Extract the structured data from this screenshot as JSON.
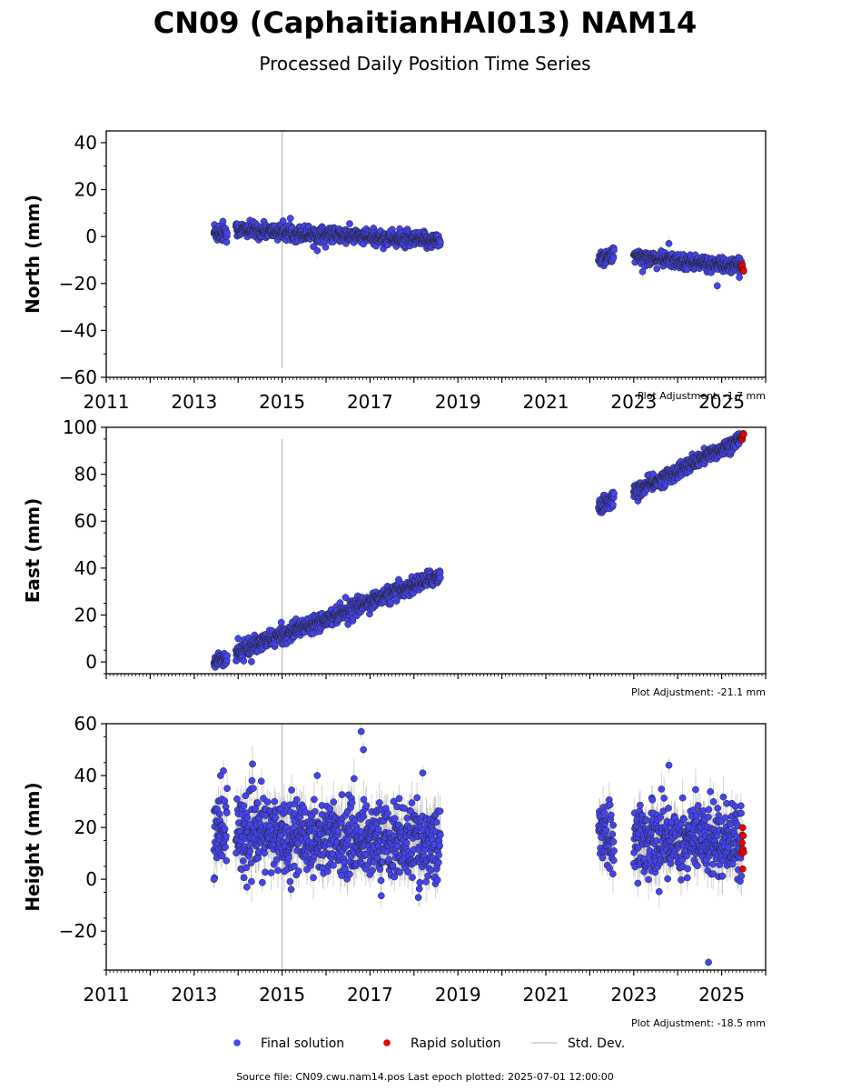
{
  "figure": {
    "title": "CN09 (CaphaitianHAI013) NAM14",
    "subtitle": "Processed Daily Position Time Series",
    "source_note": "Source file: CN09.cwu.nam14.pos  Last epoch plotted: 2025-07-01 12:00:00"
  },
  "legend": {
    "items": [
      {
        "label": "Final solution",
        "color": "#4444ee",
        "marker": "dot"
      },
      {
        "label": "Rapid solution",
        "color": "#ee0000",
        "marker": "dot"
      },
      {
        "label": "Std. Dev.",
        "color": "#cccccc",
        "marker": "line"
      }
    ]
  },
  "colors": {
    "final": "#4444ee",
    "rapid": "#ee0000",
    "std": "#b0b0b0",
    "marker_edge": "#222222",
    "event_line": "#cccccc"
  },
  "chart_data": [
    {
      "type": "scatter",
      "ylabel": "North (mm)",
      "adjustment": "Plot Adjustment: -1.7 mm",
      "xlim": [
        2011,
        2026
      ],
      "ylim": [
        -60,
        45
      ],
      "yticks": [
        -60,
        -40,
        -20,
        0,
        20,
        40
      ],
      "x_tick_labels": [
        "2011",
        "2013",
        "2015",
        "2017",
        "2019",
        "2021",
        "2023",
        "2025"
      ],
      "x_tick_values": [
        2011,
        2013,
        2015,
        2017,
        2019,
        2021,
        2023,
        2025
      ],
      "event_lines": [
        {
          "x": 2015.0,
          "y_from": -56,
          "y_to": 45
        }
      ],
      "series": [
        {
          "kind": "final",
          "segments": [
            {
              "x0": 2013.45,
              "x1": 2013.75,
              "y0": 2,
              "y1": 2,
              "spread": 2.2,
              "sd": 1.5
            },
            {
              "x0": 2013.95,
              "x1": 2018.6,
              "y0": 3,
              "y1": -2,
              "spread": 1.6,
              "sd": 1.5
            },
            {
              "x0": 2022.2,
              "x1": 2022.55,
              "y0": -9,
              "y1": -8,
              "spread": 1.8,
              "sd": 1.6
            },
            {
              "x0": 2023.0,
              "x1": 2025.45,
              "y0": -8.5,
              "y1": -13,
              "spread": 1.5,
              "sd": 1.6
            }
          ],
          "outliers": [
            [
              2015.8,
              -6
            ],
            [
              2023.2,
              -15
            ],
            [
              2023.8,
              -3
            ],
            [
              2024.9,
              -21
            ]
          ]
        },
        {
          "kind": "rapid",
          "segments": [
            {
              "x0": 2025.45,
              "x1": 2025.5,
              "y0": -12,
              "y1": -14,
              "spread": 1.2,
              "sd": 1.2
            }
          ],
          "outliers": []
        }
      ]
    },
    {
      "type": "scatter",
      "ylabel": "East (mm)",
      "adjustment": "Plot Adjustment: -21.1 mm",
      "xlim": [
        2011,
        2026
      ],
      "ylim": [
        -5,
        100
      ],
      "yticks": [
        0,
        20,
        40,
        60,
        80,
        100
      ],
      "x_tick_labels": [],
      "x_tick_values": [
        2011,
        2013,
        2015,
        2017,
        2019,
        2021,
        2023,
        2025
      ],
      "event_lines": [
        {
          "x": 2015.0,
          "y_from": -5,
          "y_to": 95
        }
      ],
      "series": [
        {
          "kind": "final",
          "segments": [
            {
              "x0": 2013.45,
              "x1": 2013.75,
              "y0": 1,
              "y1": 1,
              "spread": 1.6,
              "sd": 1.8
            },
            {
              "x0": 2013.95,
              "x1": 2018.6,
              "y0": 4,
              "y1": 37,
              "spread": 1.7,
              "sd": 1.8
            },
            {
              "x0": 2022.2,
              "x1": 2022.55,
              "y0": 66,
              "y1": 70,
              "spread": 1.8,
              "sd": 1.9
            },
            {
              "x0": 2023.0,
              "x1": 2025.45,
              "y0": 72,
              "y1": 95,
              "spread": 1.6,
              "sd": 1.9
            }
          ],
          "outliers": [
            [
              2014.0,
              10
            ],
            [
              2016.5,
              16
            ]
          ]
        },
        {
          "kind": "rapid",
          "segments": [
            {
              "x0": 2025.45,
              "x1": 2025.5,
              "y0": 94,
              "y1": 97,
              "spread": 1.3,
              "sd": 1.2
            }
          ],
          "outliers": []
        }
      ]
    },
    {
      "type": "scatter",
      "ylabel": "Height (mm)",
      "adjustment": "Plot Adjustment: -18.5 mm",
      "xlim": [
        2011,
        2026
      ],
      "ylim": [
        -35,
        60
      ],
      "yticks": [
        -20,
        0,
        20,
        40,
        60
      ],
      "x_tick_labels": [
        "2011",
        "2013",
        "2015",
        "2017",
        "2019",
        "2021",
        "2023",
        "2025"
      ],
      "x_tick_values": [
        2011,
        2013,
        2015,
        2017,
        2019,
        2021,
        2023,
        2025
      ],
      "event_lines": [
        {
          "x": 2015.0,
          "y_from": -35,
          "y_to": 60
        }
      ],
      "series": [
        {
          "kind": "final",
          "segments": [
            {
              "x0": 2013.45,
              "x1": 2013.75,
              "y0": 20,
              "y1": 20,
              "spread": 8,
              "sd": 5
            },
            {
              "x0": 2013.95,
              "x1": 2018.6,
              "y0": 18,
              "y1": 14,
              "spread": 7,
              "sd": 6
            },
            {
              "x0": 2022.2,
              "x1": 2022.55,
              "y0": 18,
              "y1": 16,
              "spread": 7,
              "sd": 6
            },
            {
              "x0": 2023.0,
              "x1": 2025.45,
              "y0": 15,
              "y1": 16,
              "spread": 7,
              "sd": 6
            }
          ],
          "outliers": [
            [
              2016.8,
              57
            ],
            [
              2016.85,
              50
            ],
            [
              2013.6,
              40
            ],
            [
              2015.8,
              40
            ],
            [
              2018.2,
              41
            ],
            [
              2023.8,
              44
            ],
            [
              2024.7,
              -32
            ],
            [
              2013.45,
              0
            ],
            [
              2014.2,
              -3
            ],
            [
              2018.1,
              -7
            ]
          ]
        },
        {
          "kind": "rapid",
          "segments": [
            {
              "x0": 2025.45,
              "x1": 2025.5,
              "y0": 14,
              "y1": 14,
              "spread": 5,
              "sd": 3
            }
          ],
          "outliers": [
            [
              2025.48,
              4
            ]
          ]
        }
      ]
    }
  ]
}
